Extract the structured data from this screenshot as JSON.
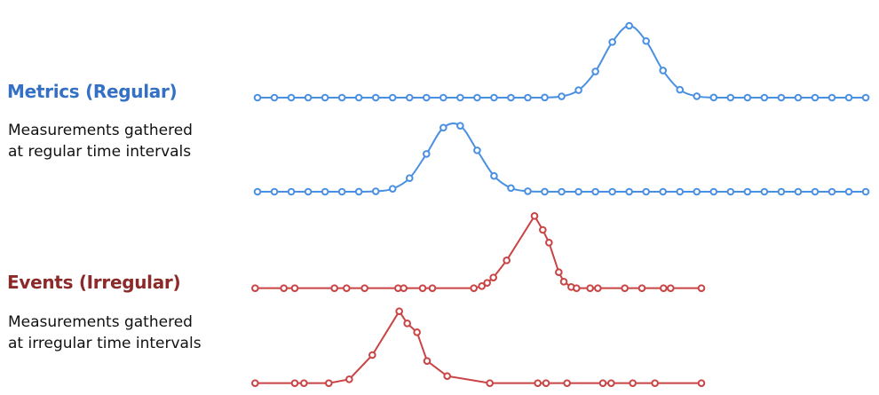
{
  "metrics": {
    "title": "Metrics (Regular)",
    "description": "Measurements gathered at regular time intervals",
    "title_color": "#3470c4",
    "line_color": "#4a90e2"
  },
  "events": {
    "title": "Events (Irregular)",
    "description": "Measurements gathered at irregular time intervals",
    "title_color": "#8c2a2a",
    "line_color": "#c94444"
  }
}
